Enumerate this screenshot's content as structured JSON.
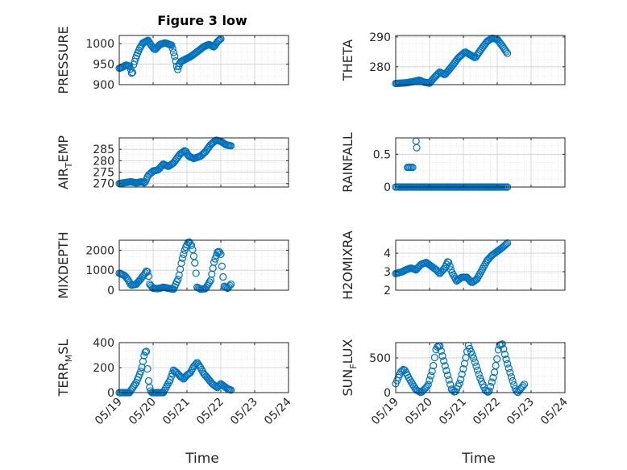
{
  "figure_title": "Figure 3 low",
  "x_label": "Time",
  "x_tick_labels": [
    "05/19",
    "05/20",
    "05/21",
    "05/22",
    "05/23",
    "05/24"
  ],
  "colors": {
    "marker": "#0072BD",
    "axes": "#262626",
    "grid": "#d9d9d9",
    "background": "#ffffff"
  },
  "chart_data": [
    {
      "type": "scatter",
      "title": "Figure 3 low",
      "ylabel": "PRESSURE",
      "xlim": [
        0,
        5
      ],
      "ylim": [
        900,
        1020
      ],
      "yticks": [
        900,
        950,
        1000
      ],
      "ytick_labels": [
        "900",
        "950",
        "1000"
      ],
      "grid": "on",
      "marker": "circle",
      "anchors": [
        [
          0.0,
          940
        ],
        [
          0.08,
          942
        ],
        [
          0.2,
          948
        ],
        [
          0.3,
          945
        ],
        [
          0.35,
          935
        ],
        [
          0.38,
          920
        ],
        [
          0.42,
          948
        ],
        [
          0.5,
          968
        ],
        [
          0.6,
          988
        ],
        [
          0.7,
          1002
        ],
        [
          0.85,
          1008
        ],
        [
          0.95,
          995
        ],
        [
          1.05,
          985
        ],
        [
          1.2,
          998
        ],
        [
          1.35,
          1002
        ],
        [
          1.55,
          996
        ],
        [
          1.65,
          965
        ],
        [
          1.72,
          935
        ],
        [
          1.8,
          955
        ],
        [
          1.95,
          962
        ],
        [
          2.1,
          968
        ],
        [
          2.3,
          980
        ],
        [
          2.5,
          993
        ],
        [
          2.65,
          998
        ],
        [
          2.8,
          992
        ],
        [
          2.9,
          1005
        ],
        [
          3.0,
          1012
        ]
      ]
    },
    {
      "type": "scatter",
      "ylabel": "THETA",
      "xlim": [
        0,
        5
      ],
      "ylim": [
        274,
        290.5
      ],
      "yticks": [
        280,
        290
      ],
      "ytick_labels": [
        "280",
        "290"
      ],
      "grid": "on",
      "marker": "circle",
      "anchors": [
        [
          0.0,
          274.4
        ],
        [
          0.3,
          274.6
        ],
        [
          0.5,
          275.0
        ],
        [
          0.7,
          275.5
        ],
        [
          0.85,
          274.8
        ],
        [
          1.0,
          274.5
        ],
        [
          1.15,
          276.5
        ],
        [
          1.3,
          278.2
        ],
        [
          1.45,
          277.3
        ],
        [
          1.65,
          280.0
        ],
        [
          1.85,
          283.0
        ],
        [
          2.05,
          285.0
        ],
        [
          2.2,
          284.0
        ],
        [
          2.35,
          283.0
        ],
        [
          2.5,
          285.5
        ],
        [
          2.7,
          288.5
        ],
        [
          2.85,
          289.6
        ],
        [
          3.0,
          289.2
        ],
        [
          3.15,
          287.0
        ],
        [
          3.3,
          284.5
        ]
      ]
    },
    {
      "type": "scatter",
      "ylabel_main": "AIR",
      "ylabel_sub": "T",
      "ylabel_rest": "EMP",
      "xlim": [
        0,
        5
      ],
      "ylim": [
        268.5,
        290
      ],
      "yticks": [
        270,
        275,
        280,
        285
      ],
      "ytick_labels": [
        "270",
        "275",
        "280",
        "285"
      ],
      "grid": "on",
      "marker": "circle",
      "anchors": [
        [
          0.0,
          270.0
        ],
        [
          0.2,
          270.5
        ],
        [
          0.35,
          270.8
        ],
        [
          0.5,
          270.3
        ],
        [
          0.65,
          270.8
        ],
        [
          0.75,
          270.2
        ],
        [
          0.85,
          273.5
        ],
        [
          1.0,
          275.5
        ],
        [
          1.15,
          276.0
        ],
        [
          1.3,
          278.5
        ],
        [
          1.45,
          277.5
        ],
        [
          1.6,
          279.0
        ],
        [
          1.8,
          283.0
        ],
        [
          1.95,
          284.5
        ],
        [
          2.05,
          282.0
        ],
        [
          2.2,
          281.0
        ],
        [
          2.4,
          282.0
        ],
        [
          2.55,
          284.0
        ],
        [
          2.7,
          287.0
        ],
        [
          2.85,
          289.0
        ],
        [
          3.0,
          288.5
        ],
        [
          3.15,
          287.0
        ],
        [
          3.3,
          286.5
        ]
      ]
    },
    {
      "type": "scatter",
      "ylabel": "RAINFALL",
      "xlim": [
        0,
        5
      ],
      "ylim": [
        0,
        0.75
      ],
      "yticks": [
        0,
        0.5
      ],
      "ytick_labels": [
        "0",
        "0.5"
      ],
      "grid": "on",
      "marker": "circle",
      "baseline": 0,
      "baseline_x": [
        0.0,
        3.3
      ],
      "points": [
        [
          0.35,
          0.3
        ],
        [
          0.38,
          0.3
        ],
        [
          0.42,
          0.3
        ],
        [
          0.46,
          0.3
        ],
        [
          0.5,
          0.3
        ],
        [
          0.6,
          0.7
        ],
        [
          0.62,
          0.6
        ]
      ]
    },
    {
      "type": "scatter",
      "ylabel": "MIXDEPTH",
      "xlim": [
        0,
        5
      ],
      "ylim": [
        0,
        2500
      ],
      "yticks": [
        0,
        1000,
        2000
      ],
      "ytick_labels": [
        "0",
        "1000",
        "2000"
      ],
      "grid": "on",
      "marker": "circle",
      "anchors": [
        [
          0.0,
          850
        ],
        [
          0.15,
          750
        ],
        [
          0.25,
          550
        ],
        [
          0.35,
          250
        ],
        [
          0.5,
          300
        ],
        [
          0.6,
          500
        ],
        [
          0.7,
          700
        ],
        [
          0.8,
          950
        ],
        [
          0.85,
          900
        ],
        [
          0.9,
          300
        ],
        [
          1.0,
          100
        ],
        [
          1.15,
          80
        ],
        [
          1.3,
          150
        ],
        [
          1.5,
          80
        ],
        [
          1.6,
          50
        ],
        [
          1.75,
          600
        ],
        [
          1.85,
          1500
        ],
        [
          1.95,
          2100
        ],
        [
          2.05,
          2450
        ],
        [
          2.15,
          2200
        ],
        [
          2.25,
          1200
        ],
        [
          2.3,
          150
        ],
        [
          2.4,
          50
        ],
        [
          2.55,
          80
        ],
        [
          2.7,
          500
        ],
        [
          2.8,
          1400
        ],
        [
          2.9,
          1900
        ],
        [
          2.95,
          1950
        ],
        [
          3.0,
          1800
        ],
        [
          3.05,
          900
        ],
        [
          3.1,
          200
        ],
        [
          3.2,
          100
        ],
        [
          3.3,
          300
        ]
      ]
    },
    {
      "type": "scatter",
      "ylabel": "H2OMIXRA",
      "xlim": [
        0,
        5
      ],
      "ylim": [
        2,
        4.7
      ],
      "yticks": [
        2,
        3,
        4
      ],
      "ytick_labels": [
        "2",
        "3",
        "4"
      ],
      "grid": "on",
      "marker": "circle",
      "anchors": [
        [
          0.0,
          2.9
        ],
        [
          0.2,
          3.0
        ],
        [
          0.3,
          3.1
        ],
        [
          0.45,
          3.2
        ],
        [
          0.6,
          3.1
        ],
        [
          0.75,
          3.4
        ],
        [
          0.9,
          3.5
        ],
        [
          1.05,
          3.3
        ],
        [
          1.2,
          3.1
        ],
        [
          1.3,
          2.9
        ],
        [
          1.45,
          3.2
        ],
        [
          1.55,
          3.6
        ],
        [
          1.65,
          3.0
        ],
        [
          1.8,
          2.5
        ],
        [
          1.95,
          2.7
        ],
        [
          2.1,
          2.7
        ],
        [
          2.25,
          2.4
        ],
        [
          2.4,
          2.6
        ],
        [
          2.55,
          3.1
        ],
        [
          2.7,
          3.6
        ],
        [
          2.85,
          3.9
        ],
        [
          3.0,
          4.1
        ],
        [
          3.15,
          4.3
        ],
        [
          3.3,
          4.55
        ]
      ]
    },
    {
      "type": "scatter",
      "ylabel_main": "TERR",
      "ylabel_sub": "M",
      "ylabel_rest": "SL",
      "xlim": [
        0,
        5
      ],
      "ylim": [
        0,
        400
      ],
      "yticks": [
        0,
        200,
        400
      ],
      "ytick_labels": [
        "0",
        "200",
        "400"
      ],
      "grid": "on",
      "marker": "circle",
      "anchors": [
        [
          0.0,
          0
        ],
        [
          0.3,
          0
        ],
        [
          0.5,
          80
        ],
        [
          0.65,
          180
        ],
        [
          0.75,
          320
        ],
        [
          0.8,
          330
        ],
        [
          0.85,
          120
        ],
        [
          0.9,
          40
        ],
        [
          0.95,
          0
        ],
        [
          1.3,
          0
        ],
        [
          1.5,
          100
        ],
        [
          1.6,
          180
        ],
        [
          1.7,
          160
        ],
        [
          1.8,
          130
        ],
        [
          1.9,
          110
        ],
        [
          2.0,
          140
        ],
        [
          2.1,
          160
        ],
        [
          2.2,
          210
        ],
        [
          2.3,
          240
        ],
        [
          2.4,
          200
        ],
        [
          2.5,
          150
        ],
        [
          2.6,
          120
        ],
        [
          2.75,
          70
        ],
        [
          2.9,
          40
        ],
        [
          3.0,
          70
        ],
        [
          3.1,
          50
        ],
        [
          3.2,
          30
        ],
        [
          3.3,
          20
        ]
      ]
    },
    {
      "type": "scatter",
      "ylabel_main": "SUN",
      "ylabel_sub": "F",
      "ylabel_rest": "LUX",
      "xlim": [
        0,
        5
      ],
      "ylim": [
        0,
        720
      ],
      "yticks": [
        0,
        500
      ],
      "ytick_labels": [
        "0",
        "500"
      ],
      "grid": "on",
      "marker": "circle",
      "anchors": [
        [
          0.0,
          130
        ],
        [
          0.15,
          300
        ],
        [
          0.25,
          340
        ],
        [
          0.4,
          200
        ],
        [
          0.6,
          40
        ],
        [
          0.75,
          0
        ],
        [
          0.95,
          100
        ],
        [
          1.1,
          350
        ],
        [
          1.2,
          650
        ],
        [
          1.3,
          680
        ],
        [
          1.45,
          400
        ],
        [
          1.65,
          50
        ],
        [
          1.75,
          0
        ],
        [
          1.9,
          150
        ],
        [
          2.05,
          450
        ],
        [
          2.15,
          680
        ],
        [
          2.3,
          500
        ],
        [
          2.5,
          200
        ],
        [
          2.65,
          30
        ],
        [
          2.75,
          0
        ],
        [
          2.9,
          250
        ],
        [
          3.0,
          500
        ],
        [
          3.05,
          680
        ],
        [
          3.15,
          700
        ],
        [
          3.25,
          500
        ],
        [
          3.4,
          250
        ],
        [
          3.5,
          100
        ],
        [
          3.55,
          30
        ],
        [
          3.6,
          0
        ],
        [
          3.7,
          60
        ],
        [
          3.8,
          120
        ]
      ]
    }
  ]
}
